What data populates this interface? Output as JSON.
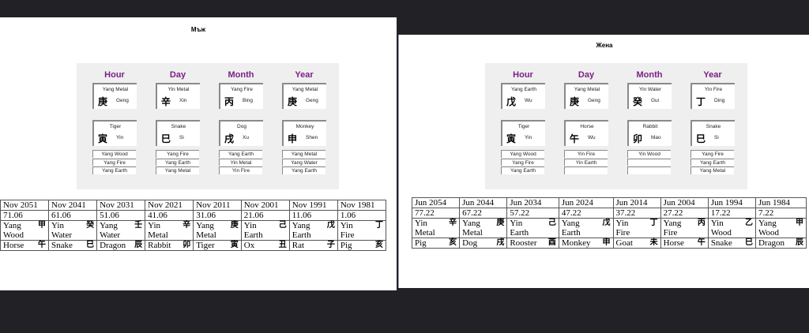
{
  "colors": {
    "background": "#222226",
    "pillar_title": "#7b1f86",
    "panel": "#efefef"
  },
  "charts": [
    {
      "title": "Мъж",
      "pillars": [
        {
          "title": "Hour",
          "stem_element": "Yang Metal",
          "stem_char": "庚",
          "stem_pinyin": "Geng",
          "branch_animal": "Tiger",
          "branch_char": "寅",
          "branch_pinyin": "Yin",
          "hidden": [
            "Yang Wood",
            "Yang Fire",
            "Yang Earth"
          ]
        },
        {
          "title": "Day",
          "stem_element": "Yin Metal",
          "stem_char": "辛",
          "stem_pinyin": "Xin",
          "branch_animal": "Snake",
          "branch_char": "巳",
          "branch_pinyin": "Si",
          "hidden": [
            "Yang Fire",
            "Yang Earth",
            "Yang Metal"
          ]
        },
        {
          "title": "Month",
          "stem_element": "Yang Fire",
          "stem_char": "丙",
          "stem_pinyin": "Bing",
          "branch_animal": "Dog",
          "branch_char": "戌",
          "branch_pinyin": "Xu",
          "hidden": [
            "Yang Earth",
            "Yin Metal",
            "Yin Fire"
          ]
        },
        {
          "title": "Year",
          "stem_element": "Yang Metal",
          "stem_char": "庚",
          "stem_pinyin": "Geng",
          "branch_animal": "Monkey",
          "branch_char": "申",
          "branch_pinyin": "Shen",
          "hidden": [
            "Yang Metal",
            "Yang Water",
            "Yang Earth"
          ]
        }
      ],
      "luck": [
        {
          "date": "Nov 2051",
          "age": "71.06",
          "polarity": "Yang",
          "stem_char": "甲",
          "element": "Wood",
          "animal": "Horse",
          "branch_char": "午"
        },
        {
          "date": "Nov 2041",
          "age": "61.06",
          "polarity": "Yin",
          "stem_char": "癸",
          "element": "Water",
          "animal": "Snake",
          "branch_char": "巳"
        },
        {
          "date": "Nov 2031",
          "age": "51.06",
          "polarity": "Yang",
          "stem_char": "壬",
          "element": "Water",
          "animal": "Dragon",
          "branch_char": "辰"
        },
        {
          "date": "Nov 2021",
          "age": "41.06",
          "polarity": "Yin",
          "stem_char": "辛",
          "element": "Metal",
          "animal": "Rabbit",
          "branch_char": "卯"
        },
        {
          "date": "Nov 2011",
          "age": "31.06",
          "polarity": "Yang",
          "stem_char": "庚",
          "element": "Metal",
          "animal": "Tiger",
          "branch_char": "寅"
        },
        {
          "date": "Nov 2001",
          "age": "21.06",
          "polarity": "Yin",
          "stem_char": "己",
          "element": "Earth",
          "animal": "Ox",
          "branch_char": "丑"
        },
        {
          "date": "Nov 1991",
          "age": "11.06",
          "polarity": "Yang",
          "stem_char": "戊",
          "element": "Earth",
          "animal": "Rat",
          "branch_char": "子"
        },
        {
          "date": "Nov 1981",
          "age": "1.06",
          "polarity": "Yin",
          "stem_char": "丁",
          "element": "Fire",
          "animal": "Pig",
          "branch_char": "亥"
        }
      ]
    },
    {
      "title": "Жена",
      "pillars": [
        {
          "title": "Hour",
          "stem_element": "Yang Earth",
          "stem_char": "戊",
          "stem_pinyin": "Wu",
          "branch_animal": "Tiger",
          "branch_char": "寅",
          "branch_pinyin": "Yin",
          "hidden": [
            "Yang Wood",
            "Yang Fire",
            "Yang Earth"
          ]
        },
        {
          "title": "Day",
          "stem_element": "Yang Metal",
          "stem_char": "庚",
          "stem_pinyin": "Geng",
          "branch_animal": "Horse",
          "branch_char": "午",
          "branch_pinyin": "Wu",
          "hidden": [
            "Yin Fire",
            "Yin Earth",
            ""
          ]
        },
        {
          "title": "Month",
          "stem_element": "Yin Water",
          "stem_char": "癸",
          "stem_pinyin": "Gui",
          "branch_animal": "Rabbit",
          "branch_char": "卯",
          "branch_pinyin": "Mao",
          "hidden": [
            "Yin Wood",
            "",
            ""
          ]
        },
        {
          "title": "Year",
          "stem_element": "Yin Fire",
          "stem_char": "丁",
          "stem_pinyin": "Ding",
          "branch_animal": "Snake",
          "branch_char": "巳",
          "branch_pinyin": "Si",
          "hidden": [
            "Yang Fire",
            "Yang Earth",
            "Yang Metal"
          ]
        }
      ],
      "luck": [
        {
          "date": "Jun 2054",
          "age": "77.22",
          "polarity": "Yin",
          "stem_char": "辛",
          "element": "Metal",
          "animal": "Pig",
          "branch_char": "亥"
        },
        {
          "date": "Jun 2044",
          "age": "67.22",
          "polarity": "Yang",
          "stem_char": "庚",
          "element": "Metal",
          "animal": "Dog",
          "branch_char": "戌"
        },
        {
          "date": "Jun 2034",
          "age": "57.22",
          "polarity": "Yin",
          "stem_char": "己",
          "element": "Earth",
          "animal": "Rooster",
          "branch_char": "酉"
        },
        {
          "date": "Jun 2024",
          "age": "47.22",
          "polarity": "Yang",
          "stem_char": "戊",
          "element": "Earth",
          "animal": "Monkey",
          "branch_char": "申"
        },
        {
          "date": "Jun 2014",
          "age": "37.22",
          "polarity": "Yin",
          "stem_char": "丁",
          "element": "Fire",
          "animal": "Goat",
          "branch_char": "未"
        },
        {
          "date": "Jun 2004",
          "age": "27.22",
          "polarity": "Yang",
          "stem_char": "丙",
          "element": "Fire",
          "animal": "Horse",
          "branch_char": "午"
        },
        {
          "date": "Jun 1994",
          "age": "17.22",
          "polarity": "Yin",
          "stem_char": "乙",
          "element": "Wood",
          "animal": "Snake",
          "branch_char": "巳"
        },
        {
          "date": "Jun 1984",
          "age": "7.22",
          "polarity": "Yang",
          "stem_char": "甲",
          "element": "Wood",
          "animal": "Dragon",
          "branch_char": "辰"
        }
      ]
    }
  ]
}
